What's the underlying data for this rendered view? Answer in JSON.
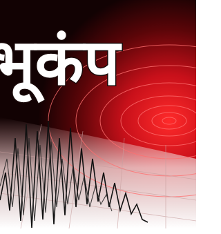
{
  "title": "भूकंप"
}
